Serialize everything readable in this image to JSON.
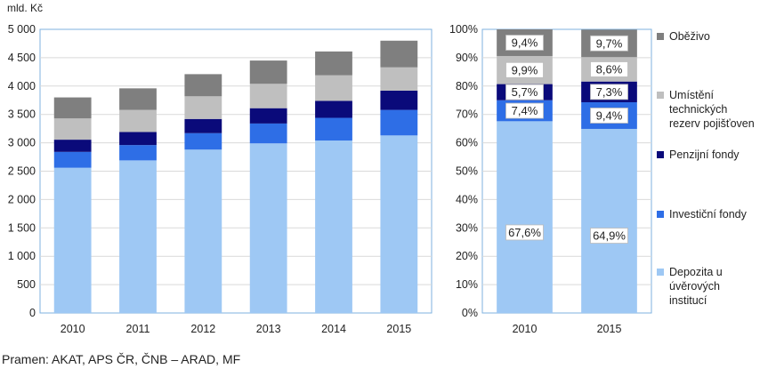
{
  "source_note": "Pramen: AKAT, APS ČR, ČNB – ARAD, MF",
  "colors": {
    "Oběživo": "#7f7f7f",
    "Umístění technických rezerv pojišťoven": "#bfbfbf",
    "Penzijní fondy": "#0a0a7a",
    "Investiční fondy": "#2e6ee6",
    "Depozita u úvěrových institucí": "#9ec8f4"
  },
  "legend": [
    {
      "key": "Oběživo",
      "label": "Oběživo"
    },
    {
      "key": "Umístění technických rezerv pojišťoven",
      "label": "Umístění\ntechnických\nrezerv pojišťoven"
    },
    {
      "key": "Penzijní fondy",
      "label": "Penzijní fondy"
    },
    {
      "key": "Investiční fondy",
      "label": "Investiční fondy"
    },
    {
      "key": "Depozita u úvěrových institucí",
      "label": "Depozita u\núvěrových\ninstitucí"
    }
  ],
  "chart_data": [
    {
      "type": "bar",
      "stacked": true,
      "ylabel": "mld. Kč",
      "ylim": [
        0,
        5000
      ],
      "yticks": [
        "0",
        "500",
        "1 000",
        "1 500",
        "2 000",
        "2 500",
        "3 000",
        "3 500",
        "4 000",
        "4 500",
        "5 000"
      ],
      "grid": true,
      "categories": [
        "2010",
        "2011",
        "2012",
        "2013",
        "2014",
        "2015"
      ],
      "series": [
        {
          "name": "Depozita u úvěrových institucí",
          "values": [
            2560,
            2690,
            2880,
            2990,
            3040,
            3130
          ]
        },
        {
          "name": "Investiční fondy",
          "values": [
            280,
            270,
            290,
            350,
            400,
            450
          ]
        },
        {
          "name": "Penzijní fondy",
          "values": [
            215,
            230,
            250,
            270,
            300,
            340
          ]
        },
        {
          "name": "Umístění technických rezerv pojišťoven",
          "values": [
            375,
            390,
            400,
            430,
            450,
            410
          ]
        },
        {
          "name": "Oběživo",
          "values": [
            370,
            380,
            390,
            410,
            420,
            470
          ]
        }
      ]
    },
    {
      "type": "bar",
      "stacked": true,
      "percent": true,
      "ylim": [
        0,
        100
      ],
      "yticks": [
        "0%",
        "10%",
        "20%",
        "30%",
        "40%",
        "50%",
        "60%",
        "70%",
        "80%",
        "90%",
        "100%"
      ],
      "grid": true,
      "categories": [
        "2010",
        "2015"
      ],
      "series": [
        {
          "name": "Depozita u úvěrových institucí",
          "values": [
            67.6,
            64.9
          ],
          "labels": [
            "67,6%",
            "64,9%"
          ]
        },
        {
          "name": "Investiční fondy",
          "values": [
            7.4,
            9.4
          ],
          "labels": [
            "7,4%",
            "9,4%"
          ]
        },
        {
          "name": "Penzijní fondy",
          "values": [
            5.7,
            7.3
          ],
          "labels": [
            "5,7%",
            "7,3%"
          ]
        },
        {
          "name": "Umístění technických rezerv pojišťoven",
          "values": [
            9.9,
            8.6
          ],
          "labels": [
            "9,9%",
            "8,6%"
          ]
        },
        {
          "name": "Oběživo",
          "values": [
            9.4,
            9.7
          ],
          "labels": [
            "9,4%",
            "9,7%"
          ]
        }
      ]
    }
  ]
}
